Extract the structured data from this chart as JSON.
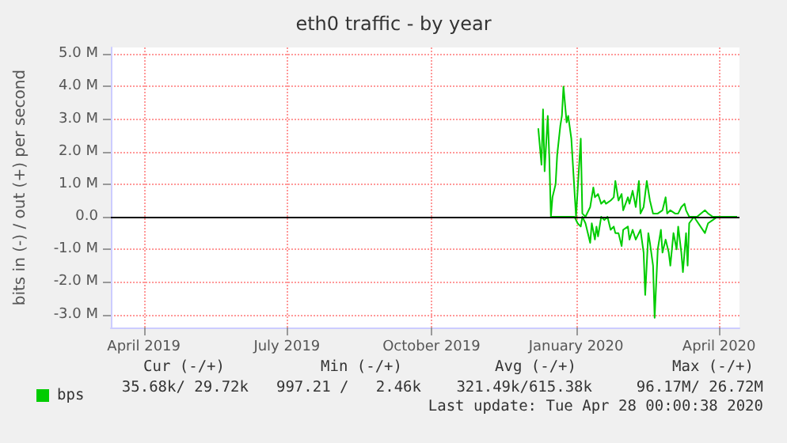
{
  "chart_data": {
    "type": "line",
    "title": "eth0 traffic - by year",
    "ylabel": "bits in (-) / out (+) per second",
    "xlim": [
      "2019-03-25",
      "2020-04-28"
    ],
    "xticks": [
      {
        "value": "2019-04-15",
        "label": "April 2019"
      },
      {
        "value": "2019-07-15",
        "label": "July 2019"
      },
      {
        "value": "2019-10-15",
        "label": "October 2019"
      },
      {
        "value": "2020-01-15",
        "label": "January 2020"
      },
      {
        "value": "2020-04-15",
        "label": "April 2020"
      }
    ],
    "ylim": [
      -3.4,
      5.2
    ],
    "yticks": [
      {
        "value": -3,
        "label": "-3.0 M"
      },
      {
        "value": -2,
        "label": "-2.0 M"
      },
      {
        "value": -1,
        "label": "-1.0 M"
      },
      {
        "value": 0,
        "label": "0.0"
      },
      {
        "value": 1,
        "label": "1.0 M"
      },
      {
        "value": 2,
        "label": "2.0 M"
      },
      {
        "value": 3,
        "label": "3.0 M"
      },
      {
        "value": 4,
        "label": "4.0 M"
      },
      {
        "value": 5,
        "label": "5.0 M"
      }
    ],
    "series": [
      {
        "name": "bps",
        "color": "#00cc00",
        "x": [
          "2019-12-22",
          "2019-12-24",
          "2019-12-25",
          "2019-12-26",
          "2019-12-28",
          "2019-12-29",
          "2019-12-30",
          "2019-12-31",
          "2020-01-02",
          "2020-01-03",
          "2020-01-05",
          "2020-01-06",
          "2020-01-07",
          "2020-01-09",
          "2020-01-10",
          "2020-01-12",
          "2020-01-14",
          "2020-01-15",
          "2020-01-16",
          "2020-01-18",
          "2020-01-19",
          "2020-01-21",
          "2020-01-24",
          "2020-01-26",
          "2020-01-27",
          "2020-01-29",
          "2020-01-31",
          "2020-02-02",
          "2020-02-03",
          "2020-02-06",
          "2020-02-08",
          "2020-02-09",
          "2020-02-11",
          "2020-02-13",
          "2020-02-14",
          "2020-02-17",
          "2020-02-18",
          "2020-02-20",
          "2020-02-22",
          "2020-02-24",
          "2020-02-25",
          "2020-02-27",
          "2020-02-29",
          "2020-03-02",
          "2020-03-04",
          "2020-03-07",
          "2020-03-10",
          "2020-03-12",
          "2020-03-13",
          "2020-03-15",
          "2020-03-18",
          "2020-03-20",
          "2020-03-22",
          "2020-03-24",
          "2020-03-25",
          "2020-03-27",
          "2020-04-01",
          "2020-04-06",
          "2020-04-08",
          "2020-04-11",
          "2020-04-26"
        ],
        "values": [
          2.7,
          1.6,
          3.3,
          1.4,
          3.1,
          1.8,
          0,
          0.6,
          1.0,
          1.9,
          2.8,
          3.1,
          4.0,
          2.9,
          3.1,
          2.4,
          0.8,
          0,
          0.8,
          2.4,
          0.1,
          0,
          0.3,
          0.9,
          0.6,
          0.7,
          0.4,
          0.5,
          0.4,
          0.5,
          0.6,
          1.1,
          0.5,
          0.7,
          0.2,
          0.6,
          0.4,
          0.8,
          0.3,
          1.1,
          0.1,
          0.3,
          1.1,
          0.5,
          0.1,
          0.1,
          0.2,
          0.6,
          0.1,
          0.2,
          0.1,
          0.1,
          0.3,
          0.4,
          0.2,
          0,
          0,
          0.2,
          0.1,
          0,
          0
        ]
      },
      {
        "color": "#00cc00",
        "x": [
          "2019-12-30",
          "2020-01-14",
          "2020-01-16",
          "2020-01-18",
          "2020-01-19",
          "2020-01-21",
          "2020-01-24",
          "2020-01-25",
          "2020-01-27",
          "2020-01-28",
          "2020-01-29",
          "2020-01-31",
          "2020-02-02",
          "2020-02-04",
          "2020-02-06",
          "2020-02-08",
          "2020-02-09",
          "2020-02-11",
          "2020-02-13",
          "2020-02-14",
          "2020-02-17",
          "2020-02-18",
          "2020-02-20",
          "2020-02-22",
          "2020-02-24",
          "2020-02-25",
          "2020-02-27",
          "2020-02-28",
          "2020-03-01",
          "2020-03-02",
          "2020-03-04",
          "2020-03-05",
          "2020-03-07",
          "2020-03-09",
          "2020-03-10",
          "2020-03-12",
          "2020-03-14",
          "2020-03-15",
          "2020-03-17",
          "2020-03-19",
          "2020-03-20",
          "2020-03-22",
          "2020-03-23",
          "2020-03-25",
          "2020-03-26",
          "2020-03-27",
          "2020-03-30",
          "2020-04-06",
          "2020-04-08",
          "2020-04-11",
          "2020-04-14",
          "2020-04-26"
        ],
        "values": [
          0,
          0,
          -0.2,
          -0.3,
          0,
          -0.2,
          -0.8,
          -0.2,
          -0.7,
          -0.3,
          -0.6,
          0,
          -0.1,
          0,
          -0.4,
          -0.3,
          -0.5,
          -0.5,
          -0.9,
          -0.4,
          -0.3,
          -0.7,
          -0.4,
          -0.7,
          -0.5,
          -0.4,
          -1.1,
          -2.4,
          -0.5,
          -0.8,
          -1.5,
          -3.1,
          -1.0,
          -0.4,
          -1.1,
          -0.7,
          -1.1,
          -1.5,
          -0.5,
          -1.0,
          -0.3,
          -1.1,
          -1.7,
          -0.5,
          -1.5,
          -0.2,
          0,
          -0.5,
          -0.2,
          -0.1,
          0,
          0
        ]
      }
    ],
    "ref_lines": [
      {
        "axis": "y",
        "value": 0,
        "color": "#000000"
      }
    ],
    "grid": true,
    "legend": "bottom",
    "marker": "none",
    "line_style": "solid",
    "annotations": [
      "Cur (-/+)",
      "Min (-/+)",
      "Avg (-/+)",
      "Max (-/+)",
      "35.68k/ 29.72k",
      "997.21 /   2.46k",
      "321.49k/615.38k",
      "96.17M/ 26.72M",
      "Last update: Tue Apr 28 00:00:38 2020"
    ]
  }
}
